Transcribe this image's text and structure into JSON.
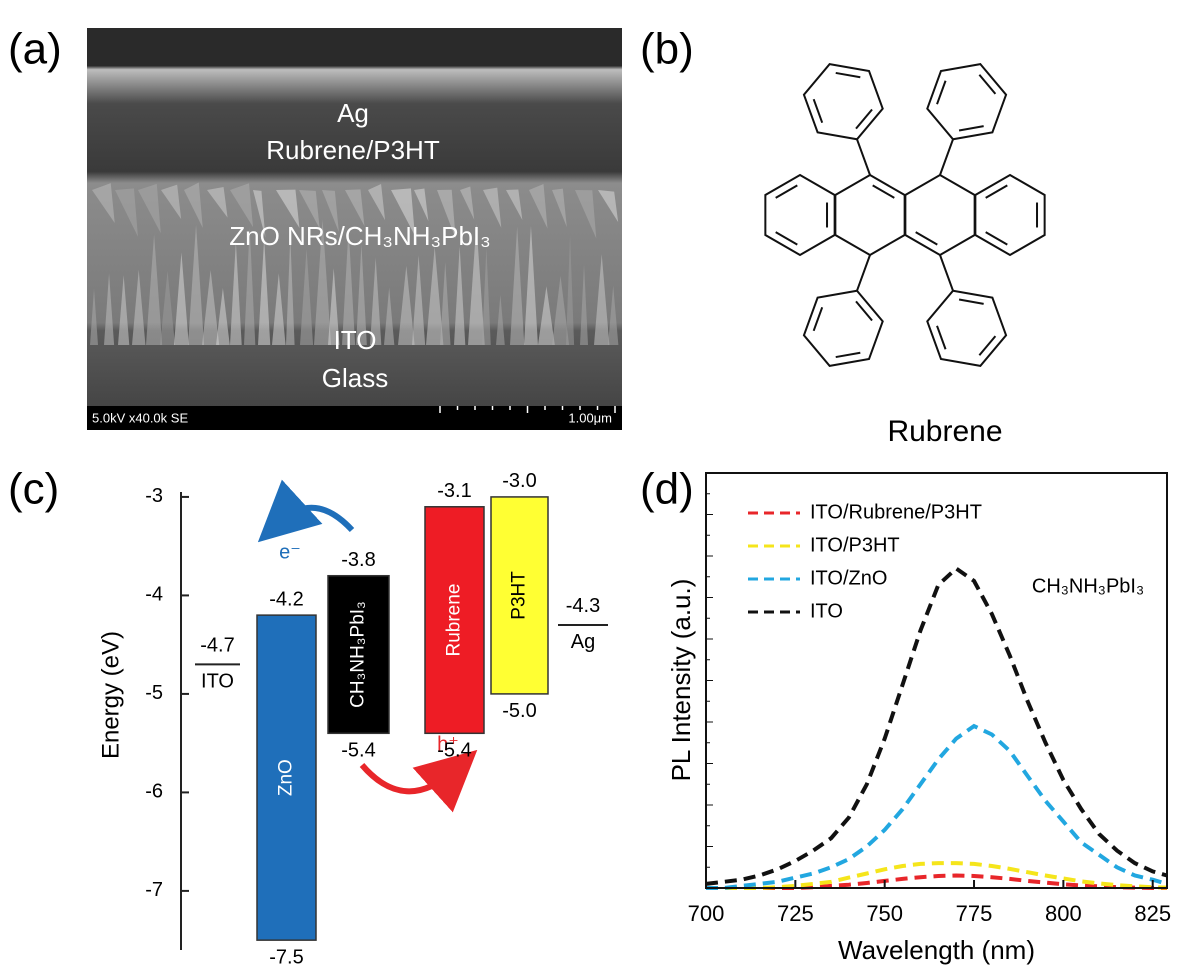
{
  "panels": {
    "a": {
      "label": "(a)",
      "layers": [
        "Ag",
        "Rubrene/P3HT",
        "ZnO NRs/CH₃NH₃PbI₃",
        "ITO",
        "Glass"
      ],
      "info": "5.0kV x40.0k SE",
      "scale_bar": "1.00μm"
    },
    "b": {
      "label": "(b)",
      "molecule": "Rubrene"
    }
  },
  "chart_data": [
    {
      "type": "energy-levels",
      "panel_label": "(c)",
      "y_label": "Energy (eV)",
      "ylim": [
        -2.95,
        -7.6
      ],
      "yticks": [
        -3,
        -4,
        -5,
        -6,
        -7
      ],
      "levels": [
        {
          "name": "ITO",
          "value": -4.7,
          "value_label": "-4.7"
        },
        {
          "name": "ZnO",
          "top": -4.2,
          "bottom": -7.5,
          "top_label": "-4.2",
          "bottom_label": "-7.5",
          "color": "#1f6fba"
        },
        {
          "name": "CH₃NH₃PbI₃",
          "top": -3.8,
          "bottom": -5.4,
          "top_label": "-3.8",
          "bottom_label": "-5.4",
          "color": "#000000"
        },
        {
          "name": "Rubrene",
          "top": -3.1,
          "bottom": -5.4,
          "top_label": "-3.1",
          "bottom_label": "-5.4",
          "color": "#ee1c25"
        },
        {
          "name": "P3HT",
          "top": -3.0,
          "bottom": -5.0,
          "top_label": "-3.0",
          "bottom_label": "-5.0",
          "color": "#ffff33"
        },
        {
          "name": "Ag",
          "value": -4.3,
          "value_label": "-4.3"
        }
      ],
      "annotations": {
        "electron": "e⁻",
        "hole": "h⁺"
      }
    },
    {
      "type": "line",
      "panel_label": "(d)",
      "x_label": "Wavelength (nm)",
      "y_label": "PL Intensity (a.u.)",
      "annotation": "CH₃NH₃PbI₃",
      "xlim": [
        700,
        829
      ],
      "xticks": [
        700,
        725,
        750,
        775,
        800,
        825
      ],
      "ylim": [
        0,
        100
      ],
      "x": [
        700,
        705,
        710,
        715,
        720,
        725,
        730,
        735,
        740,
        745,
        750,
        755,
        760,
        765,
        770,
        775,
        780,
        785,
        790,
        795,
        800,
        805,
        810,
        815,
        820,
        825,
        829
      ],
      "series": [
        {
          "name": "ITO/Rubrene/P3HT",
          "color": "#e8262a",
          "values": [
            0,
            0,
            0,
            0,
            0,
            0,
            0.2,
            0.5,
            0.8,
            1.2,
            1.7,
            2.2,
            2.6,
            2.9,
            3,
            2.9,
            2.6,
            2.2,
            1.7,
            1.3,
            0.9,
            0.6,
            0.4,
            0.2,
            0.1,
            0,
            0
          ]
        },
        {
          "name": "ITO/P3HT",
          "color": "#f5e51b",
          "values": [
            0,
            0,
            0,
            0,
            0.2,
            0.5,
            1,
            1.5,
            2.5,
            3.5,
            4.5,
            5.3,
            5.8,
            6,
            6,
            5.8,
            5.3,
            4.6,
            3.8,
            3,
            2.3,
            1.6,
            1.1,
            0.7,
            0.4,
            0.2,
            0.1
          ]
        },
        {
          "name": "ITO/ZnO",
          "color": "#22a7e0",
          "values": [
            0,
            0,
            0.5,
            1,
            1.5,
            2.5,
            3.5,
            5,
            7,
            10,
            14,
            19,
            25,
            31,
            36,
            39,
            37,
            33,
            27,
            21,
            16,
            11,
            8,
            5,
            3,
            2,
            1
          ]
        },
        {
          "name": "ITO",
          "color": "#111111",
          "values": [
            1,
            1.5,
            2,
            3,
            4.5,
            6.5,
            9,
            12,
            17,
            25,
            36,
            49,
            62,
            73,
            77,
            74,
            66,
            56,
            45,
            35,
            26,
            19,
            13,
            9,
            6,
            4,
            3
          ]
        }
      ]
    }
  ]
}
